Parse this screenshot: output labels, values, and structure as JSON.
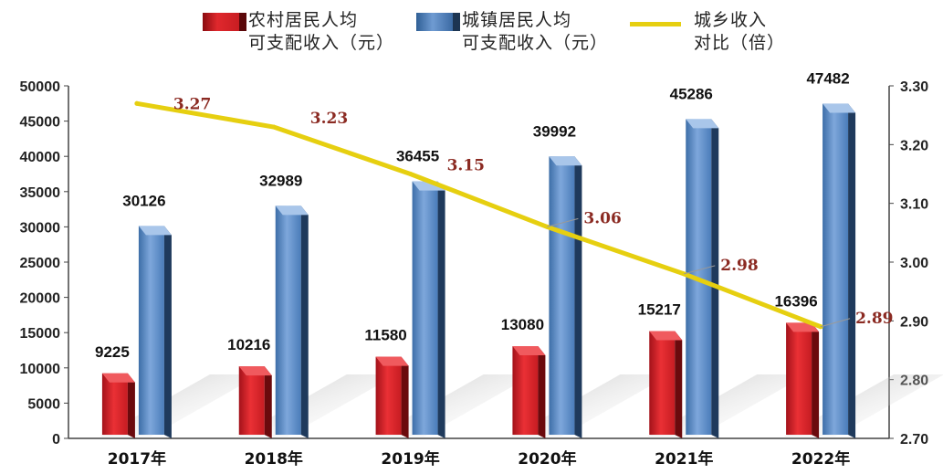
{
  "legend": {
    "rural": "农村居民人均\n可支配收入（元）",
    "urban": "城镇居民人均\n可支配收入（元）",
    "ratio": "城乡收入\n对比（倍）"
  },
  "chart_data": {
    "type": "bar",
    "categories": [
      "2017年",
      "2018年",
      "2019年",
      "2020年",
      "2021年",
      "2022年"
    ],
    "series": [
      {
        "name": "农村居民人均可支配收入（元）",
        "type": "bar",
        "axis": "left",
        "color": "#d42026",
        "values": [
          9225,
          10216,
          11580,
          13080,
          15217,
          16396
        ]
      },
      {
        "name": "城镇居民人均可支配收入（元）",
        "type": "bar",
        "axis": "left",
        "color": "#5b8cc8",
        "values": [
          30126,
          32989,
          36455,
          39992,
          45286,
          47482
        ]
      },
      {
        "name": "城乡收入对比（倍）",
        "type": "line",
        "axis": "right",
        "color": "#e6cf10",
        "values": [
          3.27,
          3.23,
          3.15,
          3.06,
          2.98,
          2.89
        ]
      }
    ],
    "y_left": {
      "min": 0,
      "max": 50000,
      "ticks": [
        "0",
        "5000",
        "10000",
        "15000",
        "20000",
        "25000",
        "30000",
        "35000",
        "40000",
        "45000",
        "50000"
      ]
    },
    "y_right": {
      "min": 2.7,
      "max": 3.3,
      "ticks": [
        "2.70",
        "2.80",
        "2.90",
        "3.00",
        "3.10",
        "3.20",
        "3.30"
      ]
    },
    "grid": false,
    "legend_position": "top"
  }
}
